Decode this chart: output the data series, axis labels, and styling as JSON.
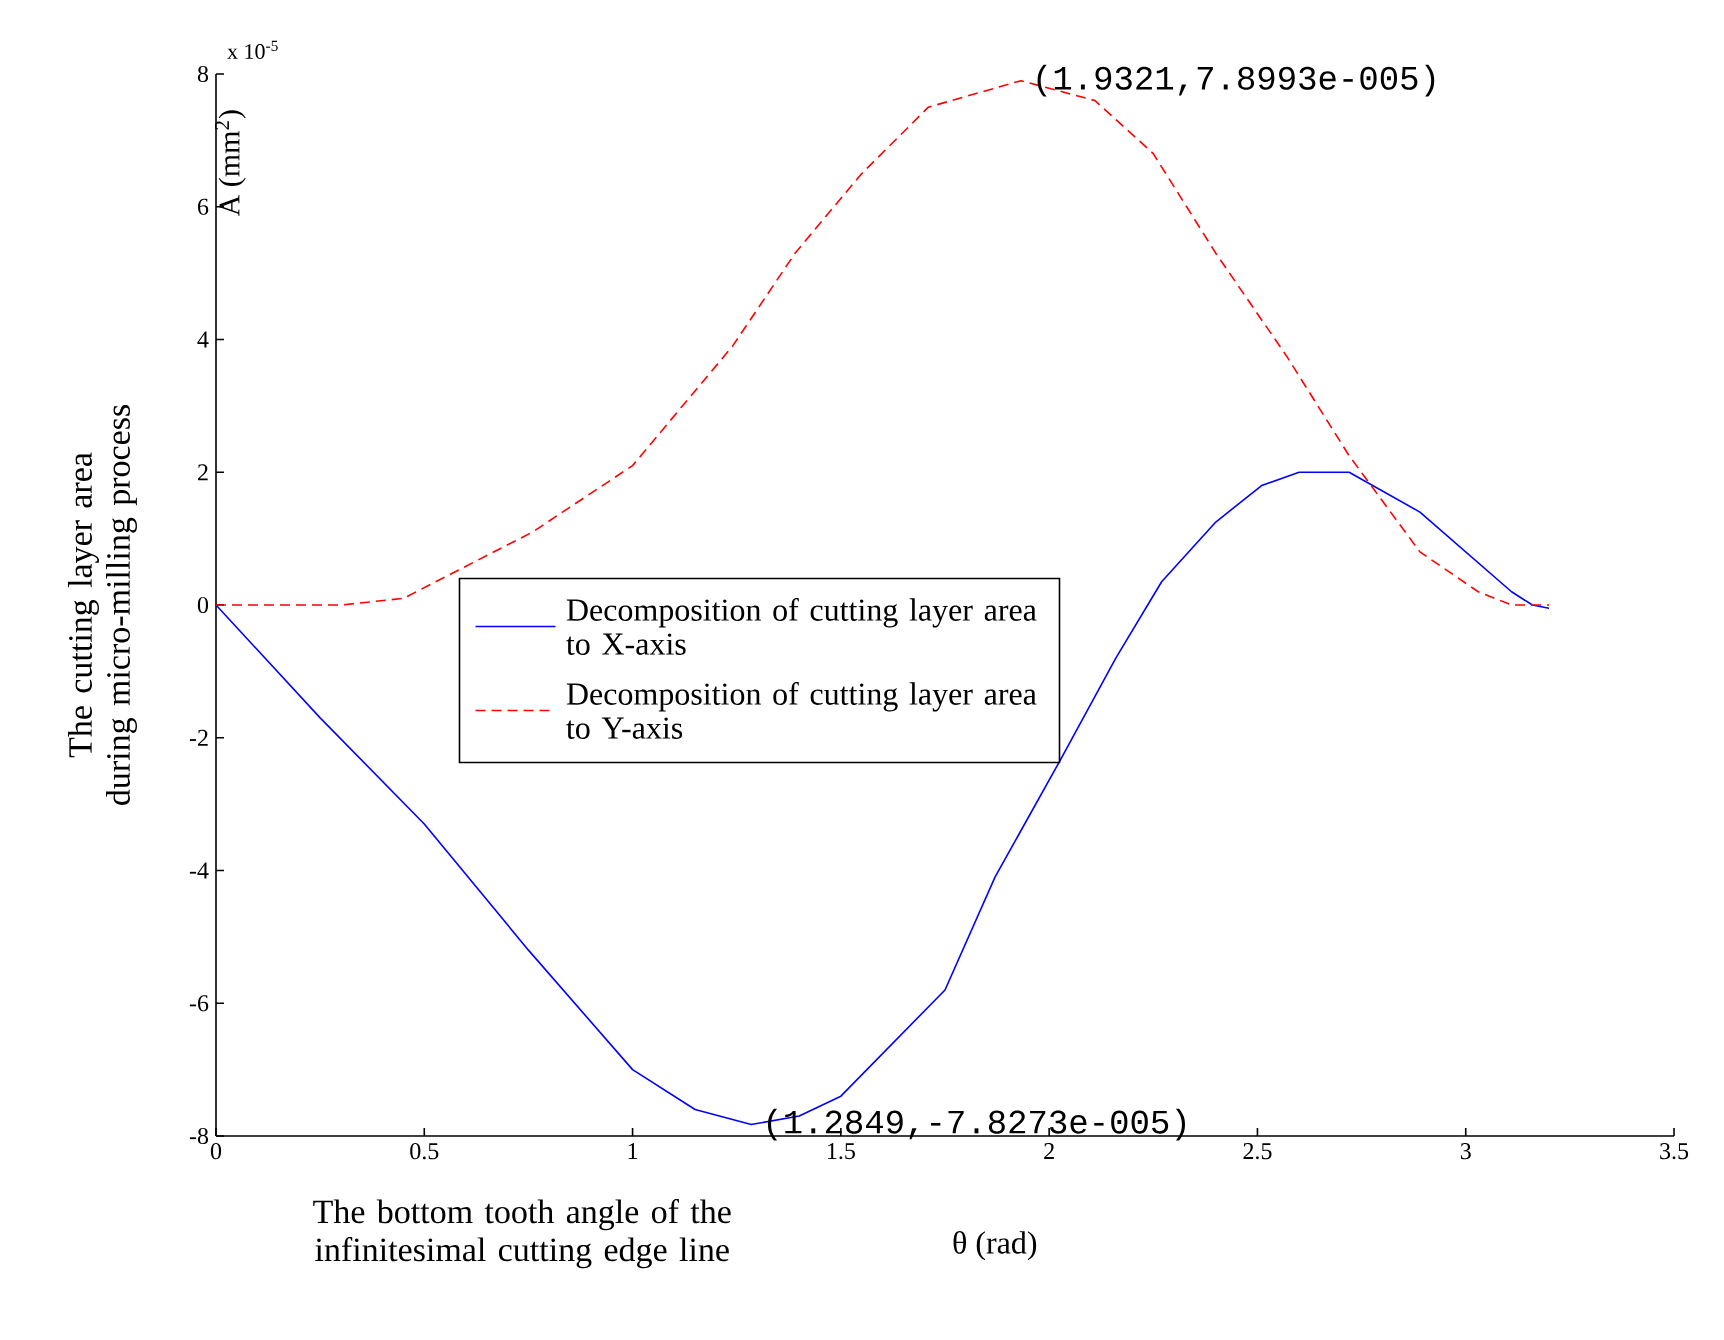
{
  "chart_data": {
    "type": "line",
    "xlabel": "The bottom tooth angle of the infinitesimal cutting edge line",
    "ylabel": "The cutting layer area during micro-milling process",
    "xlim": [
      0,
      3.5
    ],
    "xticks": [
      0,
      0.5,
      1,
      1.5,
      2,
      2.5,
      3,
      3.5
    ],
    "ylim": [
      -8,
      8
    ],
    "yticks": [
      -8,
      -6,
      -4,
      -2,
      0,
      2,
      4,
      6,
      8
    ],
    "grid": false,
    "legend": "left",
    "marker": "none",
    "series": [
      {
        "name": "Decomposition of cutting layer area to  X-axis",
        "color": "#0000ff",
        "line_style": "solid",
        "x": [
          0,
          0.25,
          0.5,
          0.75,
          1.0,
          1.15,
          1.2849,
          1.4,
          1.5,
          1.75,
          1.87,
          2.03,
          2.16,
          2.27,
          2.4,
          2.51,
          2.6,
          2.72,
          2.89,
          3.11,
          3.16,
          3.2
        ],
        "values": [
          0,
          -1.7,
          -3.3,
          -5.2,
          -7.0,
          -7.6,
          -7.8273,
          -7.7,
          -7.4,
          -5.8,
          -4.1,
          -2.3,
          -0.8,
          0.35,
          1.25,
          1.8,
          2.0,
          2.0,
          1.4,
          0.2,
          0.0,
          -0.05
        ]
      },
      {
        "name": "Decomposition of cutting layer area to  Y-axis",
        "color": "#ff0000",
        "line_style": "dashed",
        "x": [
          0,
          0.3,
          0.45,
          0.76,
          1.0,
          1.24,
          1.39,
          1.55,
          1.71,
          1.9321,
          2.11,
          2.25,
          2.4,
          2.57,
          2.72,
          2.89,
          3.03,
          3.11,
          3.2
        ],
        "values": [
          0,
          0,
          0.1,
          1.1,
          2.1,
          3.9,
          5.3,
          6.5,
          7.5,
          7.8993,
          7.6,
          6.8,
          5.3,
          3.75,
          2.25,
          0.8,
          0.2,
          0.0,
          0.0
        ]
      }
    ],
    "annotations": [
      {
        "text": "(1.9321,7.8993e-005)",
        "x": 1.9321,
        "y": 7.8993
      },
      {
        "text": "(1.2849,-7.8273e-005)",
        "x": 1.2849,
        "y": -7.8273
      },
      "x 10$^{-5}$",
      "A (mm$^{2}$)",
      "θ (rad)"
    ]
  }
}
